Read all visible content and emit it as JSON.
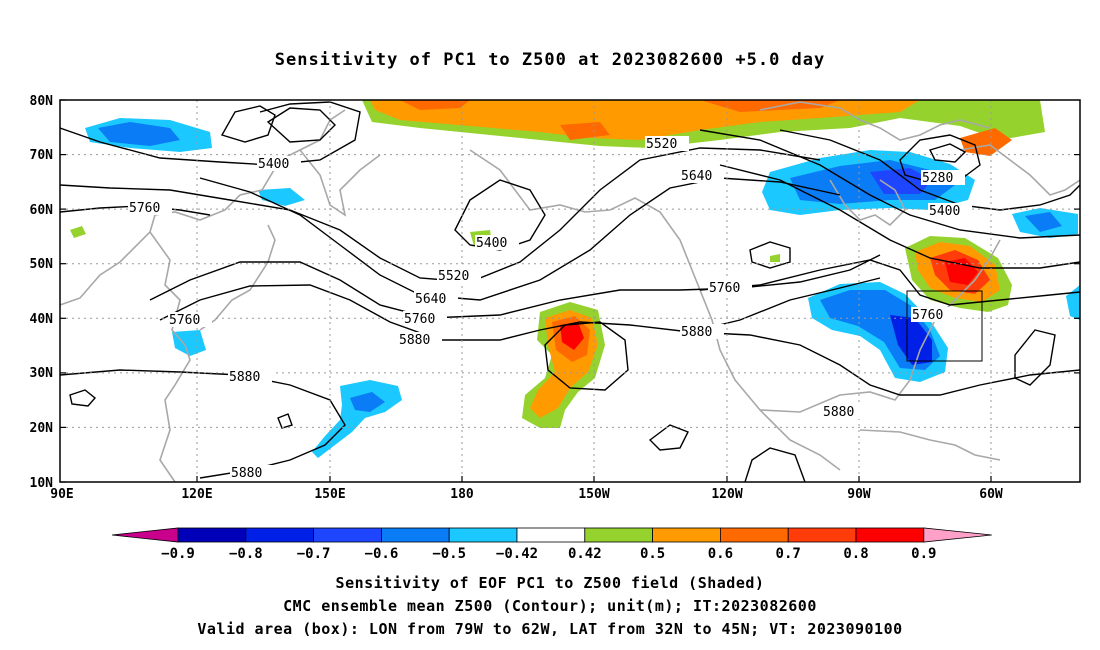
{
  "title": "Sensitivity of PC1 to Z500 at 2023082600 +5.0 day",
  "map": {
    "lat_labels": [
      "80N",
      "70N",
      "60N",
      "50N",
      "40N",
      "30N",
      "20N",
      "10N"
    ],
    "lon_labels": [
      "90E",
      "120E",
      "150E",
      "180",
      "150W",
      "120W",
      "90W",
      "60W"
    ],
    "contour_labels": [
      {
        "text": "5400"
      },
      {
        "text": "5760"
      },
      {
        "text": "5520"
      },
      {
        "text": "5640"
      },
      {
        "text": "5400"
      },
      {
        "text": "5280"
      },
      {
        "text": "5400"
      },
      {
        "text": "5520"
      },
      {
        "text": "5640"
      },
      {
        "text": "5760"
      },
      {
        "text": "5880"
      },
      {
        "text": "5760"
      },
      {
        "text": "5880"
      },
      {
        "text": "5760"
      },
      {
        "text": "5880"
      },
      {
        "text": "5760"
      },
      {
        "text": "5880"
      },
      {
        "text": "5880"
      }
    ],
    "colorbar": {
      "labels": [
        "−0.9",
        "−0.8",
        "−0.7",
        "−0.6",
        "−0.5",
        "−0.42",
        "0.42",
        "0.5",
        "0.6",
        "0.7",
        "0.8",
        "0.9"
      ],
      "colors": [
        "#0000b8",
        "#0020e8",
        "#1e46ff",
        "#0a7cf5",
        "#1bc8ff",
        "#ffffff",
        "#96d22d",
        "#ff9b00",
        "#ff6a00",
        "#ff3c0a",
        "#ff0000"
      ],
      "low_end_color": "#c8008c",
      "high_end_color": "#ffa0c8"
    }
  },
  "footer": {
    "line1": "Sensitivity of EOF PC1 to Z500 field (Shaded)",
    "line2": "CMC ensemble mean Z500 (Contour); unit(m); IT:2023082600",
    "line3": "Valid area (box): LON from 79W to 62W, LAT from 32N to 45N; VT: 2023090100"
  },
  "colors": {
    "contour": "#000000",
    "coastline": "#a8a8a8",
    "grid": "#9a9a9a"
  }
}
